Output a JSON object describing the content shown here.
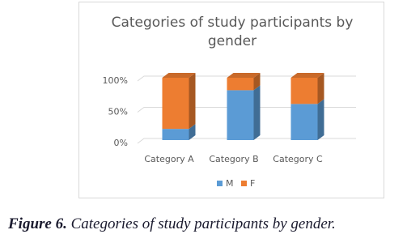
{
  "chart_data": {
    "type": "stacked-bar-3d",
    "title": "Categories of study participants by gender",
    "categories": [
      "Category A",
      "Category B",
      "Category C"
    ],
    "series": [
      {
        "name": "M",
        "color": "#5b9bd5",
        "values": [
          18,
          80,
          58
        ]
      },
      {
        "name": "F",
        "color": "#ed7d31",
        "values": [
          82,
          20,
          42
        ]
      }
    ],
    "ylim": [
      0,
      100
    ],
    "yticks": [
      {
        "value": 0,
        "label": "0%"
      },
      {
        "value": 50,
        "label": "50%"
      },
      {
        "value": 100,
        "label": "100%"
      }
    ],
    "grid": true,
    "legend": "bottom"
  },
  "caption": {
    "label": "Figure 6.",
    "text": "Categories of study participants by gender."
  }
}
